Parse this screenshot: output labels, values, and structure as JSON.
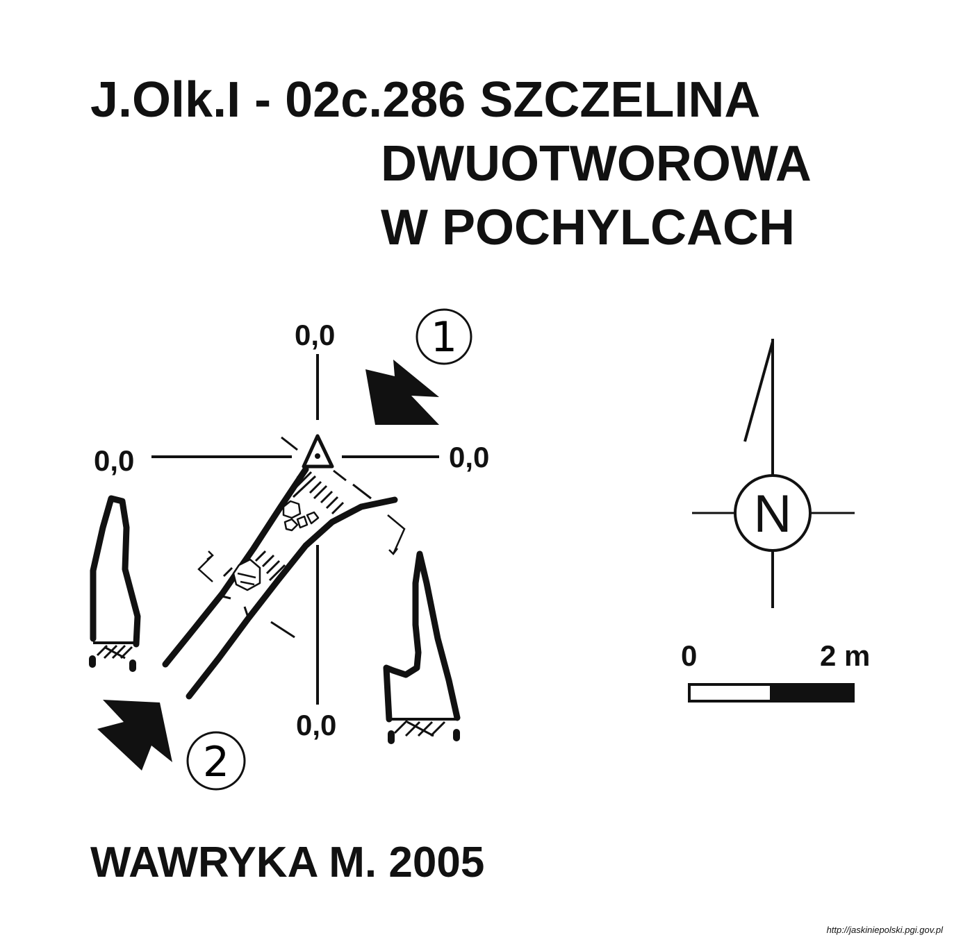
{
  "title": {
    "line1": "J.Olk.I - 02c.286  SZCZELINA",
    "line2": "DWUOTWOROWA",
    "line3": "W POCHYLCACH"
  },
  "datum_labels": {
    "top": "0,0",
    "left": "0,0",
    "right": "0,0",
    "bottom": "0,0"
  },
  "entrances": [
    {
      "number": "1"
    },
    {
      "number": "2"
    }
  ],
  "north_arrow": {
    "letter": "N"
  },
  "scale_bar": {
    "start": "0",
    "end": "2 m"
  },
  "author": "WAWRYKA M. 2005",
  "source": "http://jaskiniepolski.pgi.gov.pl"
}
